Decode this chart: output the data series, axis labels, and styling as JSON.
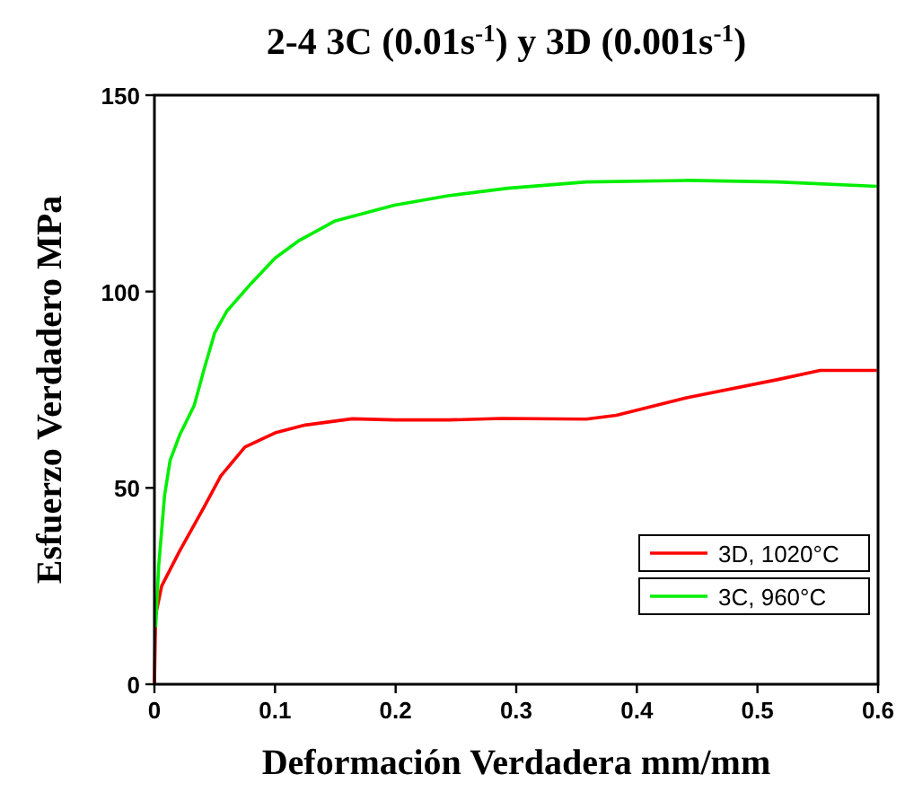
{
  "chart_data": {
    "type": "line",
    "title": "2-4 3C (0.01s$^{-1}$) y 3D (0.001s$^{-1}$)",
    "xlabel": "Deformación Verdadera mm/mm",
    "ylabel": "Esfuerzo Verdadero MPa",
    "xlim": [
      0,
      0.6
    ],
    "xticks": [
      0,
      0.1,
      0.2,
      0.3,
      0.4,
      0.5,
      0.6
    ],
    "ylim": [
      0,
      150
    ],
    "yticks": [
      0,
      50,
      100,
      150
    ],
    "grid": false,
    "legend": "bottom right",
    "series": [
      {
        "name": "3D, 1020°C",
        "color": "#ff0000",
        "x": [
          0,
          0.001,
          0.006,
          0.021,
          0.041,
          0.055,
          0.075,
          0.1,
          0.125,
          0.164,
          0.199,
          0.244,
          0.288,
          0.358,
          0.383,
          0.442,
          0.517,
          0.552,
          0.599
        ],
        "values": [
          0,
          17.6,
          25,
          34,
          45,
          53,
          60.4,
          64,
          66,
          67.6,
          67.3,
          67.3,
          67.7,
          67.5,
          68.5,
          73,
          77.6,
          79.9,
          79.9
        ]
      },
      {
        "name": "3C, 960°C",
        "color": "#00ee00",
        "x": [
          0.001,
          0.0035,
          0.0084,
          0.013,
          0.021,
          0.033,
          0.041,
          0.05,
          0.06,
          0.08,
          0.1,
          0.12,
          0.15,
          0.199,
          0.2435,
          0.293,
          0.358,
          0.442,
          0.517,
          0.599
        ],
        "values": [
          14.5,
          30,
          48,
          57,
          63.5,
          71,
          80,
          89.5,
          95,
          102,
          108.5,
          113,
          118,
          122,
          124.4,
          126.3,
          127.9,
          128.3,
          127.9,
          126.8
        ]
      }
    ]
  }
}
